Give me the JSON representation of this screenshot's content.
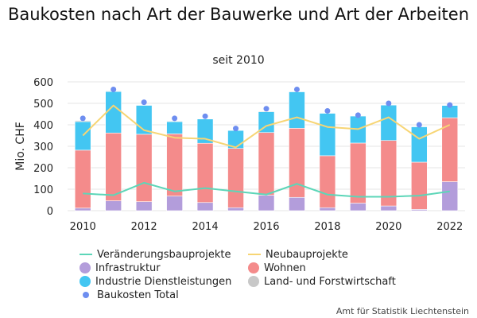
{
  "title": "Baukosten nach Art der Bauwerke und Art der Arbeiten",
  "subtitle": "seit 2010",
  "source": "Amt für Statistik Liechtenstein",
  "chart_data": {
    "type": "bar",
    "stacked": true,
    "title": "Baukosten nach Art der Bauwerke und Art der Arbeiten",
    "subtitle": "seit 2010",
    "xlabel": "",
    "ylabel": "Mio. CHF",
    "ylim": [
      0,
      600
    ],
    "yticks": [
      0,
      100,
      200,
      300,
      400,
      500,
      600
    ],
    "xticks": [
      "2010",
      "2012",
      "2014",
      "2016",
      "2018",
      "2020",
      "2022"
    ],
    "grid": true,
    "legend_position": "bottom",
    "categories": [
      "2010",
      "2011",
      "2012",
      "2013",
      "2014",
      "2015",
      "2016",
      "2017",
      "2018",
      "2019",
      "2020",
      "2021",
      "2022"
    ],
    "series": [
      {
        "name": "Infrastruktur",
        "kind": "bar",
        "color": "#b39ddb",
        "values": [
          12,
          46,
          42,
          68,
          38,
          14,
          72,
          62,
          14,
          35,
          22,
          6,
          135
        ]
      },
      {
        "name": "Wohnen",
        "kind": "bar",
        "color": "#f48b8b",
        "values": [
          270,
          316,
          314,
          290,
          276,
          276,
          292,
          322,
          242,
          280,
          305,
          220,
          298
        ]
      },
      {
        "name": "Industrie Dienstleistungen",
        "kind": "bar",
        "color": "#43c6f2",
        "values": [
          133,
          193,
          135,
          57,
          113,
          84,
          97,
          170,
          198,
          126,
          165,
          165,
          57
        ]
      },
      {
        "name": "Land- und Forstwirtschaft",
        "kind": "bar",
        "color": "#c8c8c8",
        "values": [
          5,
          3,
          2,
          3,
          2,
          1,
          3,
          2,
          2,
          2,
          2,
          2,
          2
        ]
      },
      {
        "name": "Veränderungsbauprojekte",
        "kind": "line",
        "color": "#5cd6b8",
        "values": [
          80,
          72,
          130,
          90,
          105,
          90,
          75,
          125,
          75,
          65,
          65,
          70,
          90
        ]
      },
      {
        "name": "Neubauprojekte",
        "kind": "line",
        "color": "#f7d574",
        "values": [
          350,
          490,
          375,
          340,
          335,
          295,
          395,
          435,
          390,
          380,
          435,
          335,
          400
        ]
      },
      {
        "name": "Baukosten Total",
        "kind": "scatter",
        "color": "#6e8ef0",
        "values": [
          430,
          565,
          505,
          430,
          440,
          383,
          475,
          565,
          465,
          445,
          500,
          400,
          492
        ]
      }
    ]
  },
  "legend": {
    "items": [
      {
        "label": "Veränderungsbauprojekte",
        "color": "#5cd6b8",
        "symbol": "line"
      },
      {
        "label": "Neubauprojekte",
        "color": "#f7d574",
        "symbol": "line"
      },
      {
        "label": "Infrastruktur",
        "color": "#b39ddb",
        "symbol": "dot"
      },
      {
        "label": "Wohnen",
        "color": "#f48b8b",
        "symbol": "dot"
      },
      {
        "label": "Industrie Dienstleistungen",
        "color": "#43c6f2",
        "symbol": "dot"
      },
      {
        "label": "Land- und Forstwirtschaft",
        "color": "#c8c8c8",
        "symbol": "dot"
      },
      {
        "label": "Baukosten Total",
        "color": "#6e8ef0",
        "symbol": "small-dot"
      }
    ]
  }
}
